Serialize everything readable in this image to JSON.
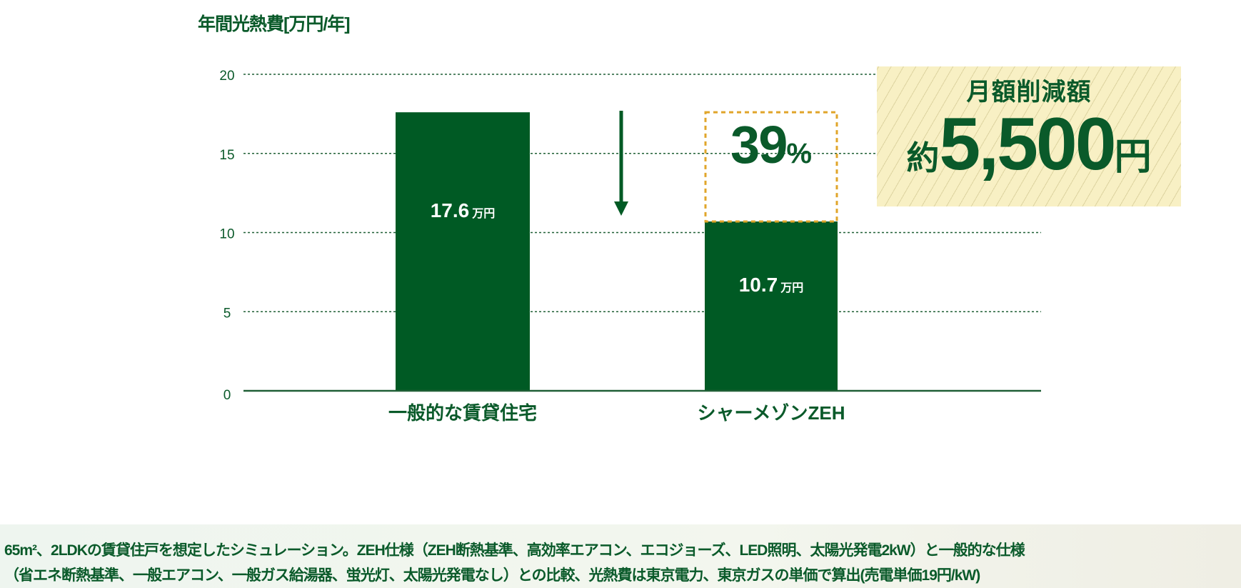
{
  "colors": {
    "bar": "#005a24",
    "grid": "#1f5f35",
    "dash_box": "#e0a52a",
    "text": "#0a5a2a"
  },
  "chart_data": {
    "type": "bar",
    "ylabel": "年間光熱費[万円/年]",
    "ylim": [
      0,
      20
    ],
    "yticks": [
      0,
      5,
      10,
      15,
      20
    ],
    "grid": true,
    "categories": [
      "一般的な賃貸住宅",
      "シャーメゾンZEH"
    ],
    "values": [
      17.6,
      10.7
    ],
    "value_labels": [
      {
        "num": "17.6",
        "unit": "万円"
      },
      {
        "num": "10.7",
        "unit": "万円"
      }
    ],
    "reduction": {
      "num": "39",
      "unit": "%"
    },
    "savings": {
      "title": "月額削減額",
      "prefix": "約",
      "amount": "5,500",
      "unit": "円"
    }
  },
  "footnote": [
    "65m²、2LDKの賃貸住戸を想定したシミュレーション。ZEH仕様（ZEH断熱基準、高効率エアコン、エコジョーズ、LED照明、太陽光発電2kW）と一般的な仕様",
    "（省エネ断熱基準、一般エアコン、一般ガス給湯器、蛍光灯、太陽光発電なし）との比較、光熱費は東京電力、東京ガスの単価で算出(売電単価19円/kW)"
  ]
}
